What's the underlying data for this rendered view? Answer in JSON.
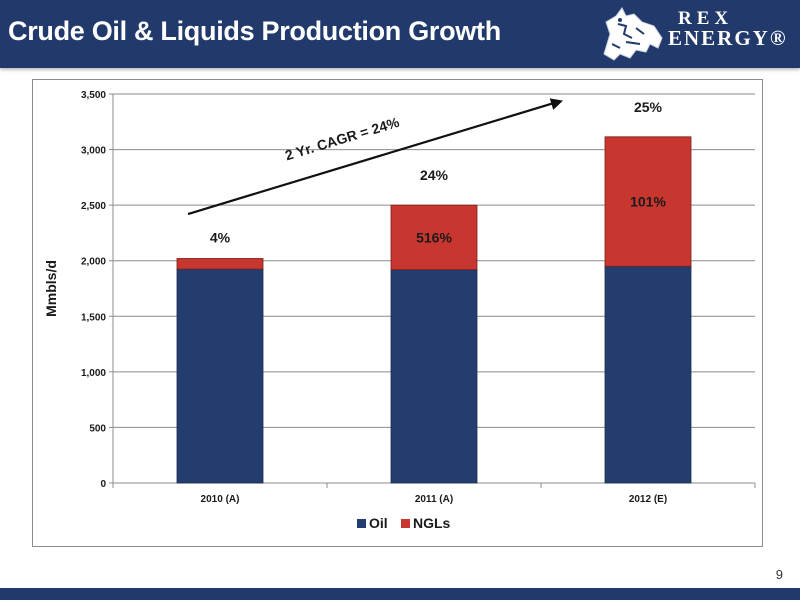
{
  "header": {
    "title": "Crude Oil & Liquids Production Growth",
    "background_color": "#213a6b"
  },
  "logo": {
    "line1": "REX",
    "line2": "ENERGY®",
    "icon": "horse-icon"
  },
  "page_number": "9",
  "chart_data": {
    "type": "bar",
    "stacked": true,
    "categories": [
      "2010 (A)",
      "2011 (A)",
      "2012 (E)"
    ],
    "series": [
      {
        "name": "Oil",
        "color": "#233e6e",
        "values": [
          1925,
          1920,
          1950
        ]
      },
      {
        "name": "NGLs",
        "color": "#c8372f",
        "values": [
          95,
          580,
          1165
        ]
      }
    ],
    "ylabel": "Mmbls/d",
    "ylim": [
      0,
      3500
    ],
    "yticks": [
      0,
      500,
      1000,
      1500,
      2000,
      2500,
      3000,
      3500
    ],
    "ytick_labels": [
      "0",
      "500",
      "1,000",
      "1,500",
      "2,000",
      "2,500",
      "3,000",
      "3,500"
    ],
    "grid": true,
    "legend": "bottom",
    "ngl_growth_labels": [
      "4%",
      "516%",
      "101%"
    ],
    "total_growth_labels": [
      "",
      "24%",
      "25%"
    ],
    "trend_annotation": {
      "text": "2 Yr. CAGR = 24%",
      "from": {
        "category": "2010 (A)",
        "value": 2420
      },
      "to": {
        "category": "2012 (E)",
        "value": 3440
      }
    }
  }
}
